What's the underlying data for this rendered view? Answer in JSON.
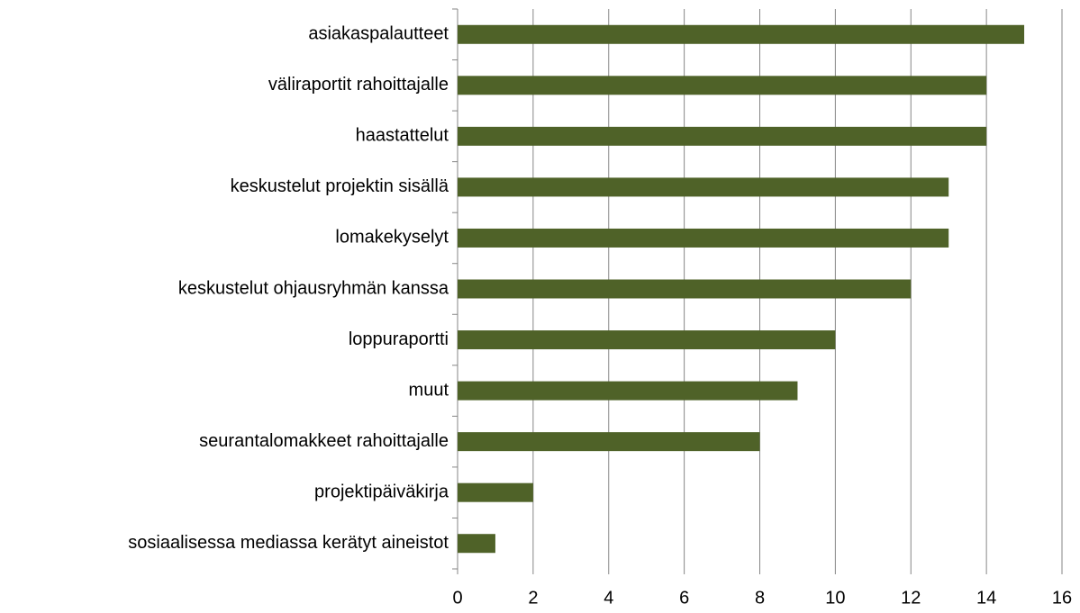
{
  "chart_data": {
    "type": "barh",
    "categories": [
      "asiakaspalautteet",
      "väliraportit rahoittajalle",
      "haastattelut",
      "keskustelut projektin sisällä",
      "lomakekyselyt",
      "keskustelut ohjausryhmän kanssa",
      "loppuraportti",
      "muut",
      "seurantalomakkeet rahoittajalle",
      "projektipäiväkirja",
      "sosiaalisessa mediassa kerätyt aineistot"
    ],
    "values": [
      15,
      14,
      14,
      13,
      13,
      12,
      10,
      9,
      8,
      2,
      1
    ],
    "color": "#4f6228",
    "xlim": [
      0,
      16
    ],
    "xticks": [
      0,
      2,
      4,
      6,
      8,
      10,
      12,
      14,
      16
    ],
    "grid": true
  }
}
